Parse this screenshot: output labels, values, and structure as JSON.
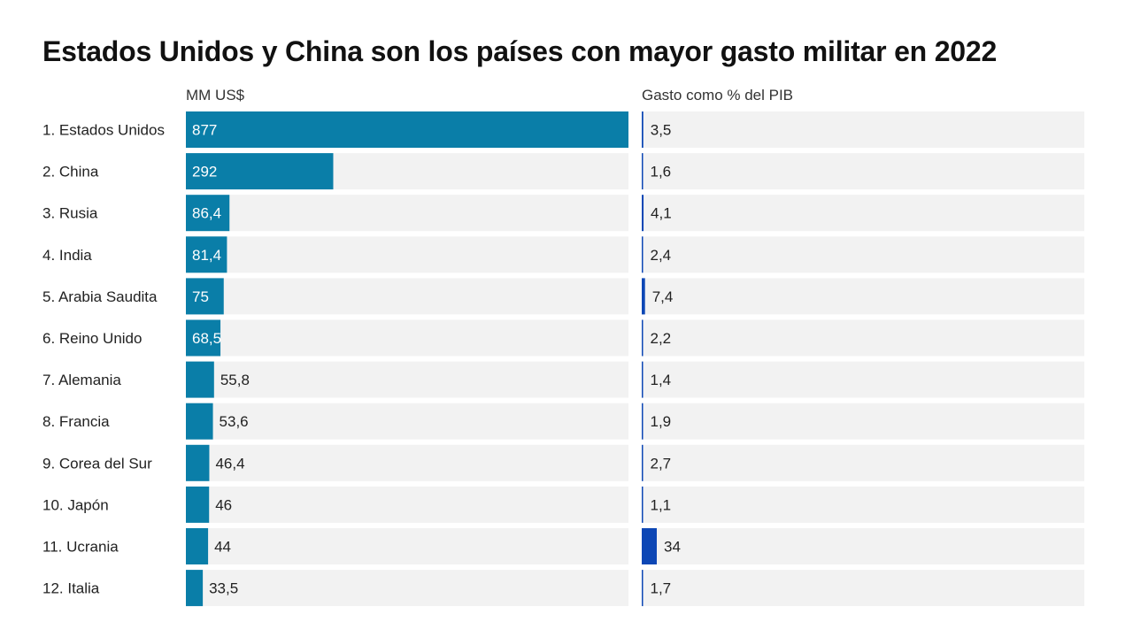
{
  "chart_data": {
    "type": "bar",
    "title": "Estados Unidos y China son los países con mayor gasto militar en 2022",
    "series": [
      {
        "name": "MM US$",
        "values": [
          877,
          292,
          86.4,
          81.4,
          75,
          68.5,
          55.8,
          53.6,
          46.4,
          46,
          44,
          33.5
        ],
        "labels": [
          "877",
          "292",
          "86,4",
          "81,4",
          "75",
          "68,5",
          "55,8",
          "53,6",
          "46,4",
          "46",
          "44",
          "33,5"
        ],
        "color": "#0a7ea8"
      },
      {
        "name": "Gasto como % del PIB",
        "values": [
          3.5,
          1.6,
          4.1,
          2.4,
          7.4,
          2.2,
          1.4,
          1.9,
          2.7,
          1.1,
          34,
          1.7
        ],
        "labels": [
          "3,5",
          "1,6",
          "4,1",
          "2,4",
          "7,4",
          "2,2",
          "1,4",
          "1,9",
          "2,7",
          "1,1",
          "34",
          "1,7"
        ],
        "color": "#0d47b5"
      }
    ],
    "categories": [
      "1. Estados Unidos",
      "2. China",
      "3. Rusia",
      "4. India",
      "5. Arabia Saudita",
      "6. Reino Unido",
      "7. Alemania",
      "8. Francia",
      "9. Corea del Sur",
      "10. Japón",
      "11. Ucrania",
      "12. Italia"
    ],
    "xlim_spend": [
      0,
      877
    ],
    "xlim_gdp": [
      0,
      1000
    ],
    "background_track_color": "#f2f2f2"
  }
}
